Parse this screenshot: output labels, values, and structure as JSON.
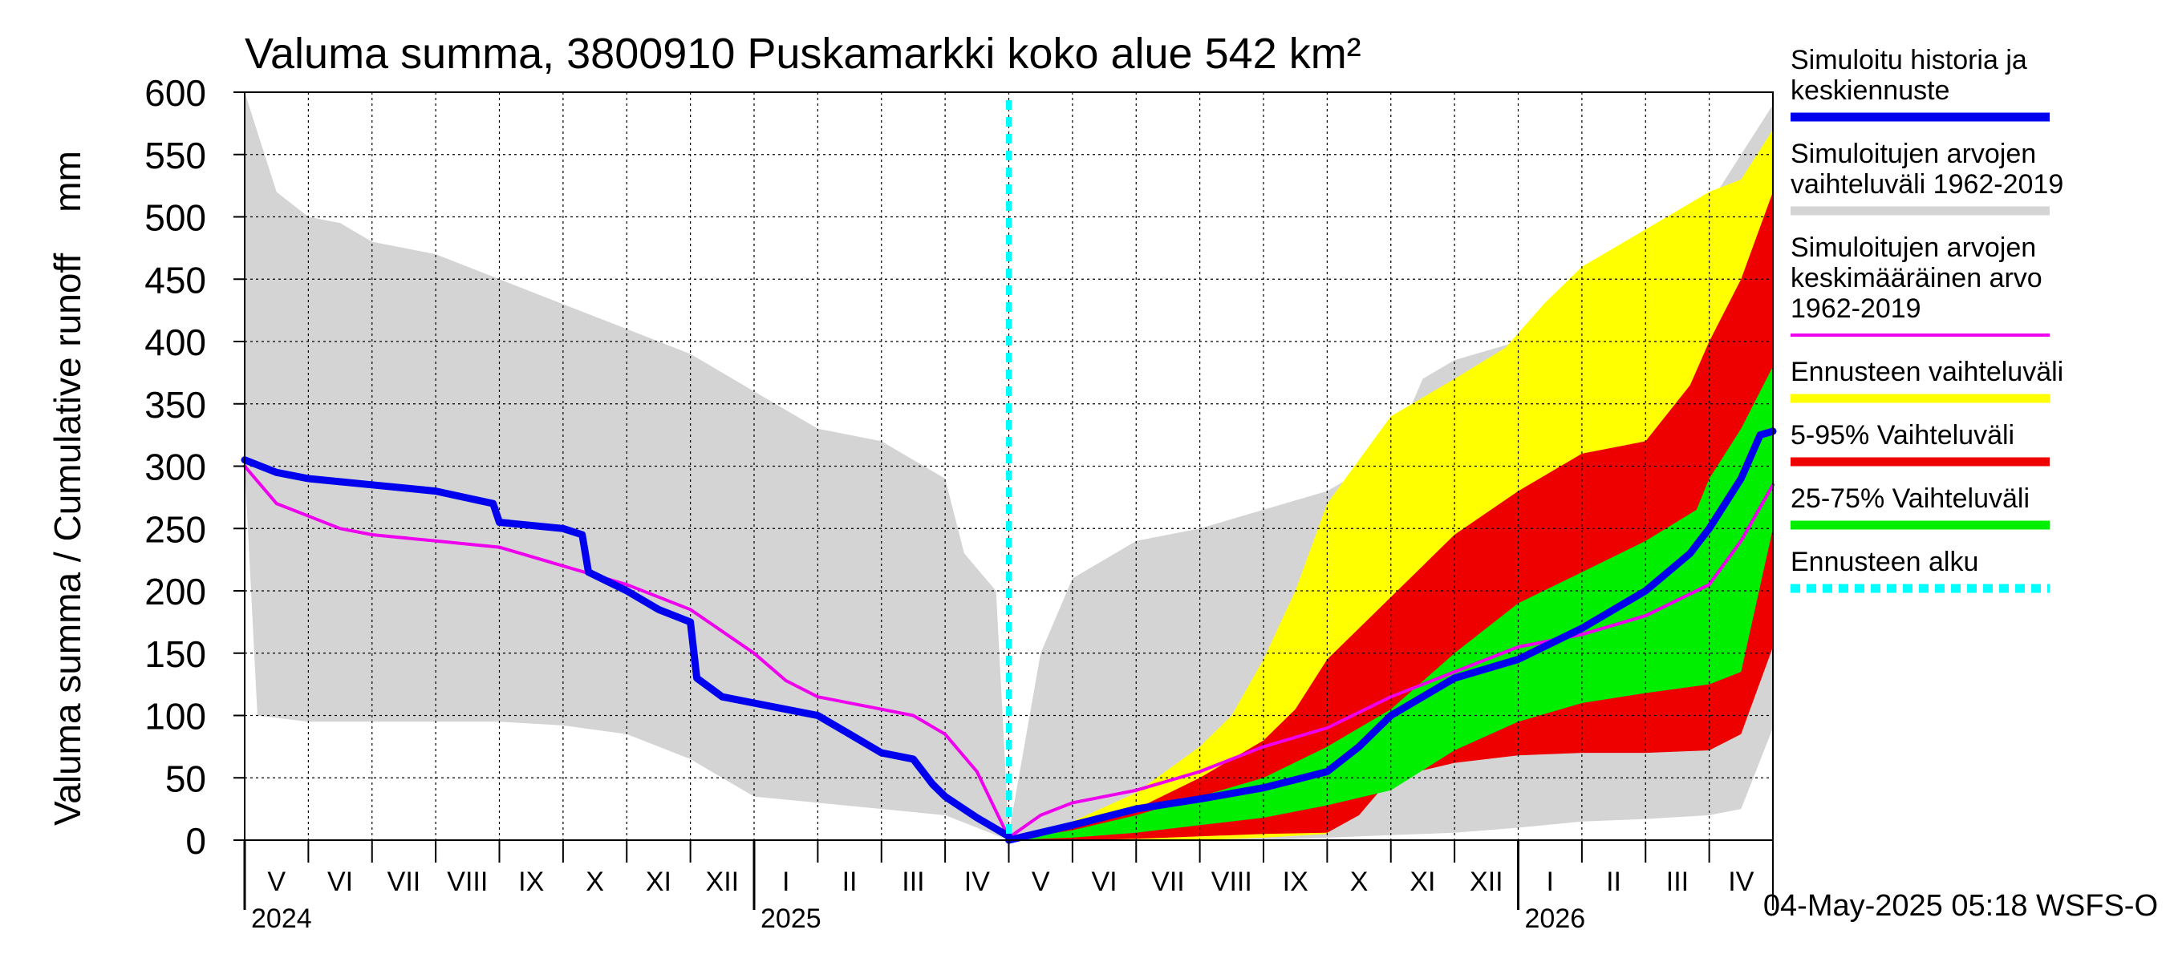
{
  "chart_data": {
    "type": "area",
    "title": "Valuma summa, 3800910 Puskamarkki koko alue 542 km²",
    "ylabel": "Valuma summa / Cumulative runoff    mm",
    "ylim": [
      0,
      600
    ],
    "yticks": [
      "0",
      "50",
      "100",
      "150",
      "200",
      "250",
      "300",
      "350",
      "400",
      "450",
      "500",
      "550",
      "600"
    ],
    "xlim_month": [
      0,
      24
    ],
    "month_labels": [
      "V",
      "VI",
      "VII",
      "VIII",
      "IX",
      "X",
      "XI",
      "XII",
      "I",
      "II",
      "III",
      "IV",
      "V",
      "VI",
      "VII",
      "VIII",
      "IX",
      "X",
      "XI",
      "XII",
      "I",
      "II",
      "III",
      "IV"
    ],
    "years": [
      {
        "label": "2024",
        "month": 0
      },
      {
        "label": "2025",
        "month": 8
      },
      {
        "label": "2026",
        "month": 20
      }
    ],
    "forecast_start_month": 12,
    "timestamp": "04-May-2025 05:18 WSFS-O",
    "colors": {
      "history": "#0000ee",
      "range_hist": "#d4d4d4",
      "mean": "#ee00ee",
      "forecast_range": "#ffff00",
      "p5_95": "#ee0000",
      "p25_75": "#00ee00",
      "forecast_start": "#00ffff",
      "grid": "#000000"
    },
    "series": {
      "range_hist_upper": [
        [
          0,
          600
        ],
        [
          0.5,
          520
        ],
        [
          1,
          500
        ],
        [
          1.5,
          495
        ],
        [
          2,
          480
        ],
        [
          3,
          470
        ],
        [
          4,
          450
        ],
        [
          5,
          430
        ],
        [
          6,
          410
        ],
        [
          7,
          390
        ],
        [
          8,
          360
        ],
        [
          9,
          330
        ],
        [
          10,
          320
        ],
        [
          11,
          290
        ],
        [
          11.3,
          230
        ],
        [
          11.8,
          200
        ],
        [
          12,
          5
        ],
        [
          12.5,
          150
        ],
        [
          13,
          210
        ],
        [
          14,
          240
        ],
        [
          15,
          250
        ],
        [
          16,
          265
        ],
        [
          17,
          280
        ],
        [
          18,
          310
        ],
        [
          18.5,
          370
        ],
        [
          19,
          385
        ],
        [
          20,
          400
        ],
        [
          21,
          420
        ],
        [
          22,
          460
        ],
        [
          23,
          510
        ],
        [
          23.5,
          550
        ],
        [
          24,
          590
        ]
      ],
      "range_hist_lower": [
        [
          0,
          300
        ],
        [
          0.2,
          100
        ],
        [
          1,
          95
        ],
        [
          3,
          95
        ],
        [
          4,
          95
        ],
        [
          5,
          92
        ],
        [
          6,
          85
        ],
        [
          7,
          65
        ],
        [
          8,
          35
        ],
        [
          9,
          30
        ],
        [
          10,
          25
        ],
        [
          11,
          20
        ],
        [
          12,
          0
        ],
        [
          13,
          0
        ],
        [
          14,
          0
        ],
        [
          15,
          0
        ],
        [
          16,
          0
        ],
        [
          17,
          2
        ],
        [
          18,
          4
        ],
        [
          19,
          6
        ],
        [
          20,
          10
        ],
        [
          21,
          15
        ],
        [
          22,
          17
        ],
        [
          23,
          20
        ],
        [
          23.5,
          25
        ],
        [
          24,
          90
        ]
      ],
      "forecast_upper": [
        [
          12,
          0
        ],
        [
          13,
          15
        ],
        [
          14,
          38
        ],
        [
          15,
          75
        ],
        [
          15.5,
          100
        ],
        [
          16,
          145
        ],
        [
          16.5,
          200
        ],
        [
          17,
          270
        ],
        [
          18,
          340
        ],
        [
          19,
          370
        ],
        [
          19.8,
          395
        ],
        [
          20.4,
          430
        ],
        [
          21,
          460
        ],
        [
          22,
          490
        ],
        [
          23,
          520
        ],
        [
          23.5,
          530
        ],
        [
          24,
          570
        ]
      ],
      "forecast_lower": [
        [
          12,
          0
        ],
        [
          13,
          0
        ],
        [
          14,
          0
        ],
        [
          15,
          0
        ],
        [
          16,
          2
        ],
        [
          17,
          5
        ],
        [
          17.5,
          30
        ],
        [
          18,
          55
        ],
        [
          19,
          68
        ],
        [
          20,
          70
        ],
        [
          21,
          72
        ],
        [
          22,
          72
        ],
        [
          23,
          75
        ],
        [
          23.5,
          90
        ],
        [
          24,
          160
        ]
      ],
      "p95": [
        [
          12,
          0
        ],
        [
          13,
          10
        ],
        [
          14,
          25
        ],
        [
          15,
          50
        ],
        [
          16,
          80
        ],
        [
          16.5,
          105
        ],
        [
          17,
          145
        ],
        [
          18,
          195
        ],
        [
          19,
          245
        ],
        [
          20,
          280
        ],
        [
          21,
          310
        ],
        [
          22,
          320
        ],
        [
          22.7,
          365
        ],
        [
          23,
          400
        ],
        [
          23.5,
          450
        ],
        [
          24,
          520
        ]
      ],
      "p5": [
        [
          12,
          0
        ],
        [
          13,
          0
        ],
        [
          14,
          1
        ],
        [
          15,
          3
        ],
        [
          16,
          5
        ],
        [
          17,
          6
        ],
        [
          17.5,
          20
        ],
        [
          18,
          50
        ],
        [
          19,
          62
        ],
        [
          20,
          68
        ],
        [
          21,
          70
        ],
        [
          22,
          70
        ],
        [
          23,
          72
        ],
        [
          23.5,
          85
        ],
        [
          24,
          155
        ]
      ],
      "p75": [
        [
          12,
          0
        ],
        [
          13,
          8
        ],
        [
          14,
          20
        ],
        [
          15,
          35
        ],
        [
          16,
          50
        ],
        [
          17,
          75
        ],
        [
          18,
          105
        ],
        [
          19,
          150
        ],
        [
          20,
          190
        ],
        [
          21,
          215
        ],
        [
          22,
          240
        ],
        [
          22.8,
          265
        ],
        [
          23,
          290
        ],
        [
          23.5,
          330
        ],
        [
          24,
          380
        ]
      ],
      "p25": [
        [
          12,
          0
        ],
        [
          13,
          2
        ],
        [
          14,
          6
        ],
        [
          15,
          12
        ],
        [
          16,
          18
        ],
        [
          17,
          28
        ],
        [
          18,
          40
        ],
        [
          19,
          72
        ],
        [
          20,
          95
        ],
        [
          21,
          110
        ],
        [
          22,
          118
        ],
        [
          23,
          125
        ],
        [
          23.5,
          135
        ],
        [
          24,
          250
        ]
      ],
      "mean": [
        [
          0,
          300
        ],
        [
          0.5,
          270
        ],
        [
          1,
          260
        ],
        [
          1.5,
          250
        ],
        [
          2,
          245
        ],
        [
          3,
          240
        ],
        [
          4,
          235
        ],
        [
          5,
          220
        ],
        [
          6,
          205
        ],
        [
          7,
          185
        ],
        [
          8,
          150
        ],
        [
          8.5,
          128
        ],
        [
          9,
          115
        ],
        [
          10,
          105
        ],
        [
          10.5,
          100
        ],
        [
          11,
          85
        ],
        [
          11.5,
          55
        ],
        [
          12,
          2
        ],
        [
          12.5,
          20
        ],
        [
          13,
          30
        ],
        [
          14,
          40
        ],
        [
          15,
          55
        ],
        [
          16,
          75
        ],
        [
          17,
          90
        ],
        [
          18,
          115
        ],
        [
          19,
          135
        ],
        [
          20,
          155
        ],
        [
          21,
          165
        ],
        [
          22,
          180
        ],
        [
          23,
          205
        ],
        [
          23.5,
          240
        ],
        [
          24,
          285
        ]
      ],
      "history": [
        [
          0,
          305
        ],
        [
          0.5,
          295
        ],
        [
          1,
          290
        ],
        [
          2,
          285
        ],
        [
          3,
          280
        ],
        [
          3.9,
          270
        ],
        [
          4,
          255
        ],
        [
          5,
          250
        ],
        [
          5.3,
          245
        ],
        [
          5.4,
          215
        ],
        [
          6,
          200
        ],
        [
          6.5,
          185
        ],
        [
          7,
          175
        ],
        [
          7.1,
          130
        ],
        [
          7.5,
          115
        ],
        [
          8,
          110
        ],
        [
          9,
          100
        ],
        [
          9.5,
          85
        ],
        [
          10,
          70
        ],
        [
          10.5,
          65
        ],
        [
          10.8,
          45
        ],
        [
          11,
          35
        ],
        [
          11.5,
          18
        ],
        [
          12,
          3
        ]
      ],
      "median_forecast": [
        [
          12,
          0
        ],
        [
          13,
          12
        ],
        [
          14,
          25
        ],
        [
          15,
          33
        ],
        [
          16,
          42
        ],
        [
          17,
          55
        ],
        [
          17.5,
          75
        ],
        [
          18,
          100
        ],
        [
          19,
          130
        ],
        [
          20,
          145
        ],
        [
          21,
          170
        ],
        [
          22,
          200
        ],
        [
          22.7,
          230
        ],
        [
          23,
          250
        ],
        [
          23.5,
          290
        ],
        [
          23.8,
          325
        ],
        [
          24,
          328
        ]
      ]
    },
    "legend": [
      {
        "label": "Simuloitu historia ja keskiennuste",
        "lines": [
          "Simuloitu historia ja",
          "keskiennuste"
        ],
        "color": "#0000ee",
        "style": "solid"
      },
      {
        "label": "Simuloitujen arvojen vaihteluväli 1962-2019",
        "lines": [
          "Simuloitujen arvojen",
          "vaihteluväli 1962-2019"
        ],
        "color": "#d4d4d4",
        "style": "solid"
      },
      {
        "label": "Simuloitujen arvojen keskimääräinen arvo 1962-2019",
        "lines": [
          "Simuloitujen arvojen",
          "keskimääräinen arvo",
          "   1962-2019"
        ],
        "color": "#ee00ee",
        "style": "thin"
      },
      {
        "label": "Ennusteen vaihteluväli",
        "lines": [
          "Ennusteen vaihteluväli"
        ],
        "color": "#ffff00",
        "style": "solid"
      },
      {
        "label": "5-95% Vaihteluväli",
        "lines": [
          "5-95% Vaihteluväli"
        ],
        "color": "#ee0000",
        "style": "solid"
      },
      {
        "label": "25-75% Vaihteluväli",
        "lines": [
          "25-75% Vaihteluväli"
        ],
        "color": "#00ee00",
        "style": "solid"
      },
      {
        "label": "Ennusteen alku",
        "lines": [
          "Ennusteen alku"
        ],
        "color": "#00ffff",
        "style": "dashed"
      }
    ]
  }
}
